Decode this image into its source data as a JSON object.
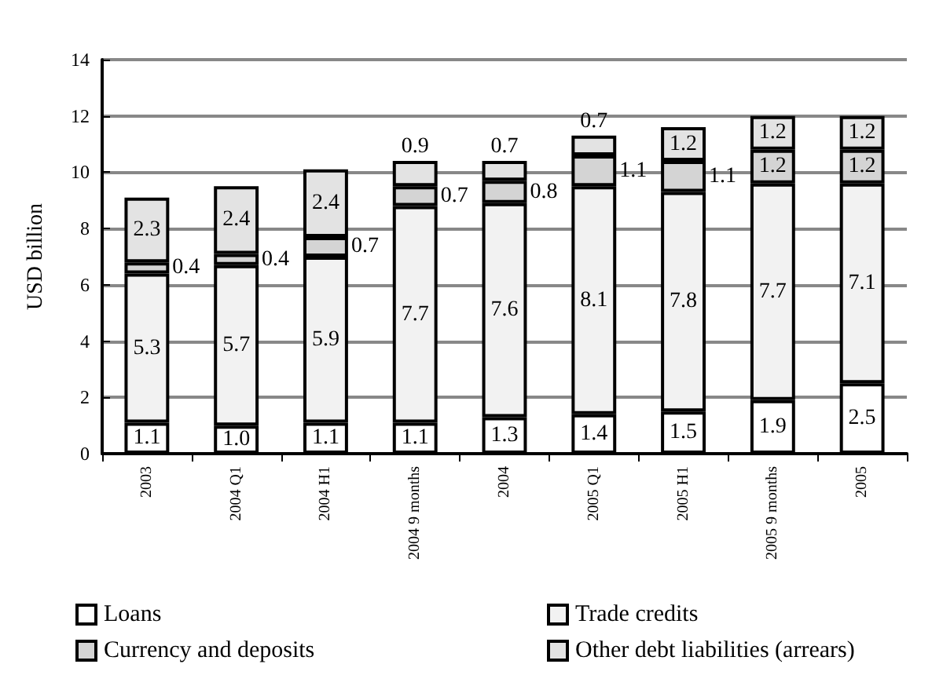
{
  "chart_data": {
    "type": "bar",
    "stacked": true,
    "ylabel": "USD billion",
    "categories": [
      "2003",
      "2004 Q1",
      "2004 H1",
      "2004 9 months",
      "2004",
      "2005 Q1",
      "2005 H1",
      "2005 9 months",
      "2005"
    ],
    "series": [
      {
        "name": "Loans",
        "color": "#ffffff",
        "values": [
          1.1,
          1.0,
          1.1,
          1.1,
          1.3,
          1.4,
          1.5,
          1.9,
          2.5
        ],
        "value_labels": [
          "1.1",
          "1.0",
          "1.1",
          "1.1",
          "1.3",
          "1.4",
          "1.5",
          "1.9",
          "2.5"
        ]
      },
      {
        "name": "Trade credits",
        "color": "#f2f2f2",
        "values": [
          5.3,
          5.7,
          5.9,
          7.7,
          7.6,
          8.1,
          7.8,
          7.7,
          7.1
        ],
        "value_labels": [
          "5.3",
          "5.7",
          "5.9",
          "7.7",
          "7.6",
          "8.1",
          "7.8",
          "7.7",
          "7.1"
        ]
      },
      {
        "name": "Currency and deposits",
        "color": "#d4d4d4",
        "values": [
          0.4,
          0.4,
          0.7,
          0.7,
          0.8,
          1.1,
          1.1,
          1.2,
          1.2
        ],
        "value_labels": [
          "0.4",
          "0.4",
          "0.7",
          "0.7",
          "0.8",
          "1.1",
          "1.1",
          "1.2",
          "1.2"
        ]
      },
      {
        "name": "Other debt liabilities (arrears)",
        "color": "#e3e3e3",
        "values": [
          2.3,
          2.4,
          2.4,
          0.9,
          0.7,
          0.7,
          1.2,
          1.2,
          1.2
        ],
        "value_labels": [
          "2.3",
          "2.4",
          "2.4",
          "0.9",
          "0.7",
          "0.7",
          "1.2",
          "1.2",
          "1.2"
        ]
      }
    ],
    "ylim": [
      0,
      14
    ],
    "yticks": [
      0,
      2,
      4,
      6,
      8,
      10,
      12,
      14
    ],
    "grid": "y",
    "legend": "bottom"
  }
}
